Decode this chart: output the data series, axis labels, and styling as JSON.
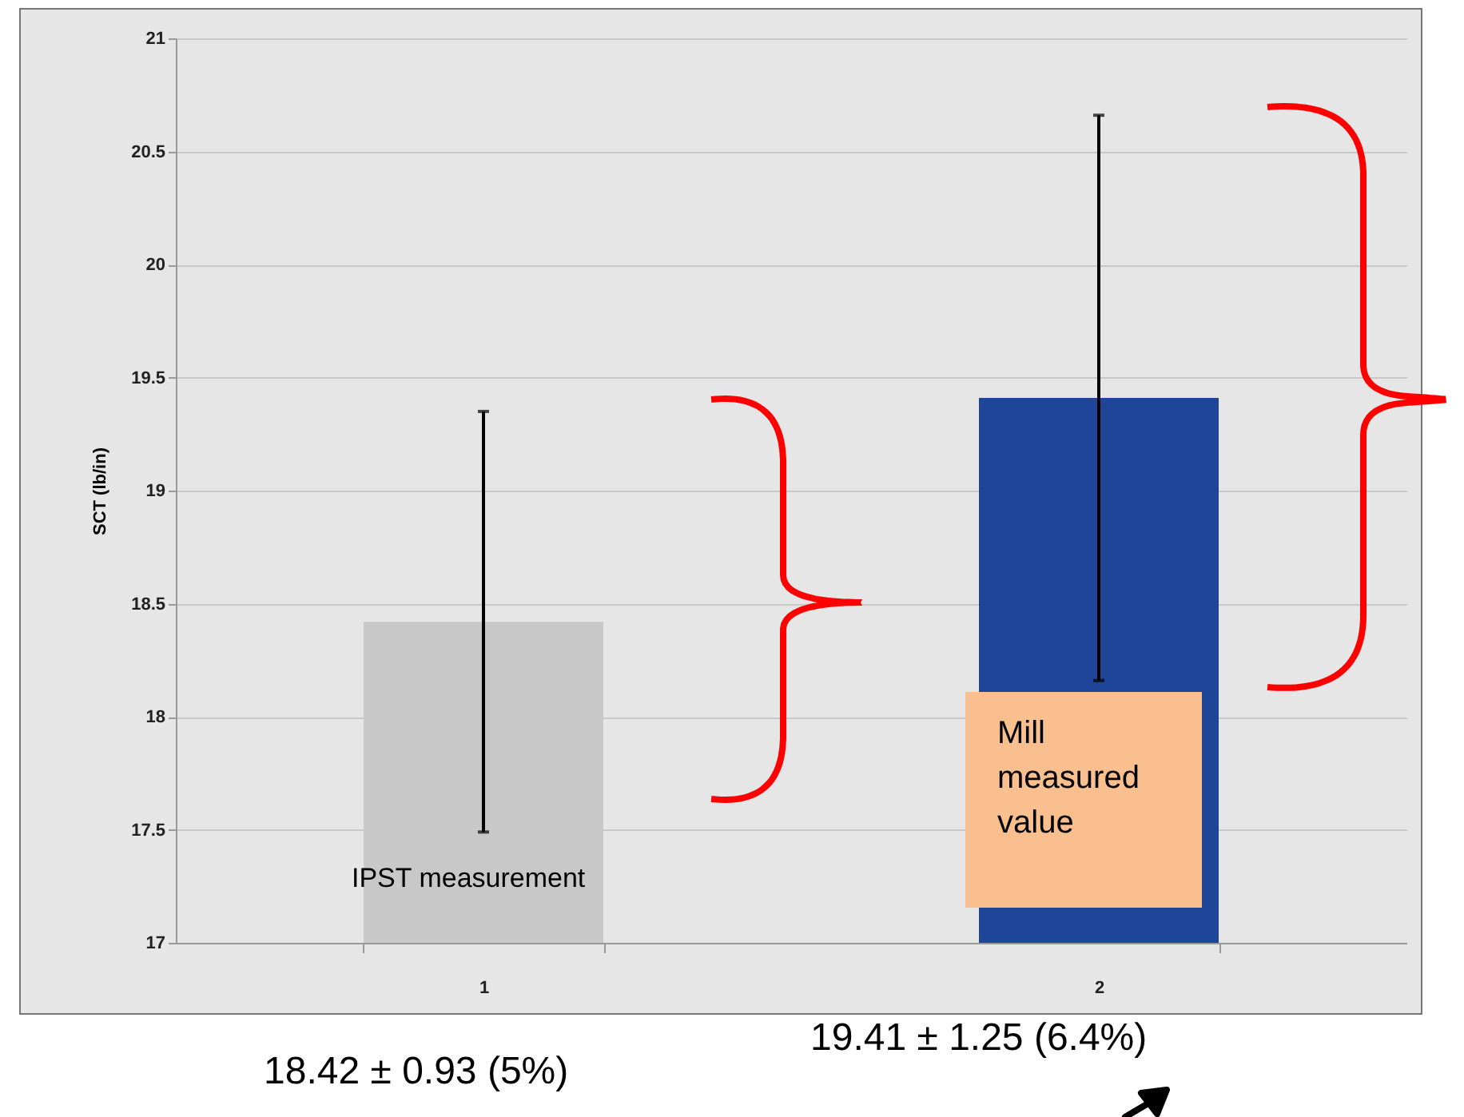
{
  "chart_data": {
    "type": "bar",
    "ylabel": "SCT (lb/in)",
    "categories": [
      "1",
      "2"
    ],
    "values": [
      18.42,
      19.41
    ],
    "colors": [
      "#c8c8c8",
      "#1f4599"
    ],
    "errors": [
      0.93,
      1.25
    ],
    "ylim": [
      17,
      21
    ],
    "yticks": [
      17,
      17.5,
      18,
      18.5,
      19,
      19.5,
      20,
      20.5,
      21
    ],
    "grid": "y",
    "annotations": [
      "IPST measurement",
      "Mill measured value",
      "18.42  ± 0.93 (5%)",
      "19.41  ± 1.25 (6.4%)"
    ]
  }
}
